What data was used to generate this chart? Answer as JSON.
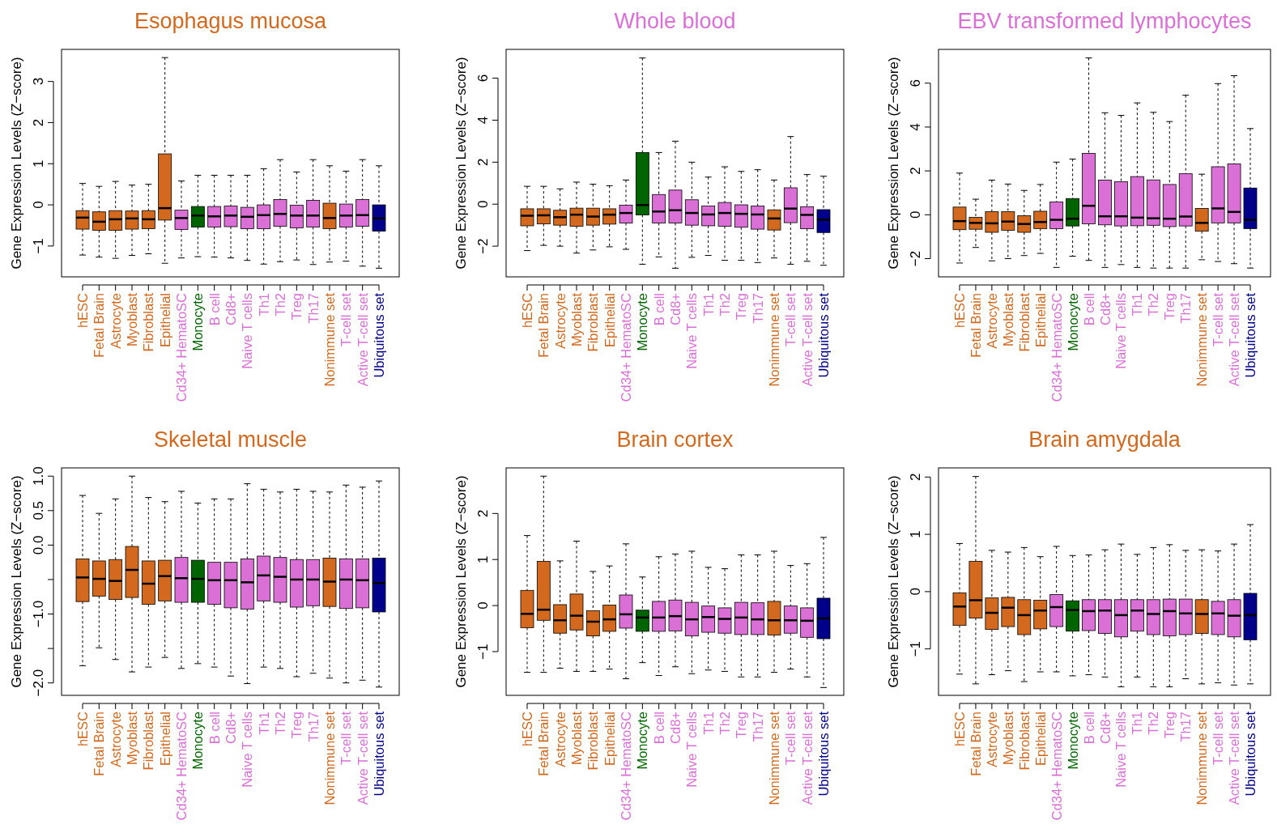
{
  "chart_data": [
    {
      "type": "box",
      "title": "Esophagus mucosa",
      "color": "#d2691e",
      "ylabel": "Gene Expression Levels (Z−score)",
      "ylim": [
        -1.75,
        3.78
      ],
      "yticks": [
        -1,
        0,
        1,
        2,
        3
      ],
      "categories": [
        "hESC",
        "Fetal Brain",
        "Astrocyte",
        "Myoblast",
        "Fibroblast",
        "Epithelial",
        "Cd34+ HematoSC",
        "Monocyte",
        "B cell",
        "Cd8+",
        "Naive T cells",
        "Th1",
        "Th2",
        "Treg",
        "Th17",
        "Nonimmune set",
        "T-cell set",
        "Active T-cell set",
        "Ubiquitous set"
      ],
      "colors": [
        "#d2691e",
        "#d2691e",
        "#d2691e",
        "#d2691e",
        "#d2691e",
        "#d2691e",
        "#da70d6",
        "#006400",
        "#da70d6",
        "#da70d6",
        "#da70d6",
        "#da70d6",
        "#da70d6",
        "#da70d6",
        "#da70d6",
        "#d2691e",
        "#da70d6",
        "#da70d6",
        "#00008b"
      ],
      "boxes": [
        {
          "low": -1.22,
          "q1": -0.59,
          "median": -0.31,
          "q3": -0.14,
          "high": 0.52
        },
        {
          "low": -1.27,
          "q1": -0.62,
          "median": -0.41,
          "q3": -0.17,
          "high": 0.45
        },
        {
          "low": -1.3,
          "q1": -0.62,
          "median": -0.35,
          "q3": -0.14,
          "high": 0.57
        },
        {
          "low": -1.23,
          "q1": -0.59,
          "median": -0.33,
          "q3": -0.15,
          "high": 0.48
        },
        {
          "low": -1.19,
          "q1": -0.58,
          "median": -0.35,
          "q3": -0.14,
          "high": 0.5
        },
        {
          "low": -1.42,
          "q1": -0.37,
          "median": -0.08,
          "q3": 1.24,
          "high": 3.58
        },
        {
          "low": -1.29,
          "q1": -0.6,
          "median": -0.32,
          "q3": -0.13,
          "high": 0.58
        },
        {
          "low": -1.26,
          "q1": -0.54,
          "median": -0.26,
          "q3": -0.04,
          "high": 0.72
        },
        {
          "low": -1.27,
          "q1": -0.54,
          "median": -0.28,
          "q3": -0.04,
          "high": 0.72
        },
        {
          "low": -1.29,
          "q1": -0.53,
          "median": -0.26,
          "q3": -0.03,
          "high": 0.72
        },
        {
          "low": -1.35,
          "q1": -0.58,
          "median": -0.29,
          "q3": -0.06,
          "high": 0.72
        },
        {
          "low": -1.44,
          "q1": -0.58,
          "median": -0.25,
          "q3": 0.0,
          "high": 0.88
        },
        {
          "low": -1.38,
          "q1": -0.52,
          "median": -0.22,
          "q3": 0.13,
          "high": 1.1
        },
        {
          "low": -1.34,
          "q1": -0.56,
          "median": -0.26,
          "q3": -0.01,
          "high": 0.8
        },
        {
          "low": -1.45,
          "q1": -0.54,
          "median": -0.26,
          "q3": 0.11,
          "high": 1.1
        },
        {
          "low": -1.39,
          "q1": -0.58,
          "median": -0.32,
          "q3": 0.04,
          "high": 0.95
        },
        {
          "low": -1.37,
          "q1": -0.54,
          "median": -0.26,
          "q3": 0.02,
          "high": 0.82
        },
        {
          "low": -1.49,
          "q1": -0.52,
          "median": -0.25,
          "q3": 0.13,
          "high": 1.1
        },
        {
          "low": -1.54,
          "q1": -0.64,
          "median": -0.33,
          "q3": 0.0,
          "high": 0.95
        }
      ]
    },
    {
      "type": "box",
      "title": "Whole blood",
      "color": "#da70d6",
      "ylabel": "Gene Expression Levels (Z−score)",
      "ylim": [
        -3.46,
        7.37
      ],
      "yticks": [
        -2,
        0,
        2,
        4,
        6
      ],
      "categories": [
        "hESC",
        "Fetal Brain",
        "Astrocyte",
        "Myoblast",
        "Fibroblast",
        "Epithelial",
        "Cd34+ HematoSC",
        "Monocyte",
        "B cell",
        "Cd8+",
        "Naive T cells",
        "Th1",
        "Th2",
        "Treg",
        "Th17",
        "Nonimmune set",
        "T-cell set",
        "Active T-cell set",
        "Ubiquitous set"
      ],
      "colors": [
        "#d2691e",
        "#d2691e",
        "#d2691e",
        "#d2691e",
        "#d2691e",
        "#d2691e",
        "#da70d6",
        "#006400",
        "#da70d6",
        "#da70d6",
        "#da70d6",
        "#da70d6",
        "#da70d6",
        "#da70d6",
        "#da70d6",
        "#d2691e",
        "#da70d6",
        "#da70d6",
        "#00008b"
      ],
      "boxes": [
        {
          "low": -2.21,
          "q1": -1.03,
          "median": -0.55,
          "q3": -0.22,
          "high": 0.85
        },
        {
          "low": -1.96,
          "q1": -0.94,
          "median": -0.53,
          "q3": -0.22,
          "high": 0.85
        },
        {
          "low": -2.0,
          "q1": -1.0,
          "median": -0.62,
          "q3": -0.29,
          "high": 0.73
        },
        {
          "low": -2.33,
          "q1": -1.05,
          "median": -0.5,
          "q3": -0.19,
          "high": 1.05
        },
        {
          "low": -2.18,
          "q1": -1.0,
          "median": -0.59,
          "q3": -0.19,
          "high": 0.95
        },
        {
          "low": -2.03,
          "q1": -0.95,
          "median": -0.5,
          "q3": -0.22,
          "high": 0.88
        },
        {
          "low": -2.15,
          "q1": -0.9,
          "median": -0.42,
          "q3": -0.05,
          "high": 1.15
        },
        {
          "low": -2.86,
          "q1": -0.51,
          "median": -0.04,
          "q3": 2.46,
          "high": 6.96
        },
        {
          "low": -2.51,
          "q1": -0.9,
          "median": -0.35,
          "q3": 0.46,
          "high": 2.46
        },
        {
          "low": -3.05,
          "q1": -0.9,
          "median": -0.29,
          "q3": 0.67,
          "high": 3.0
        },
        {
          "low": -2.53,
          "q1": -1.0,
          "median": -0.42,
          "q3": 0.21,
          "high": 2.0
        },
        {
          "low": -2.44,
          "q1": -1.03,
          "median": -0.49,
          "q3": -0.09,
          "high": 1.29
        },
        {
          "low": -2.67,
          "q1": -1.05,
          "median": -0.42,
          "q3": 0.08,
          "high": 1.78
        },
        {
          "low": -2.67,
          "q1": -1.1,
          "median": -0.46,
          "q3": -0.03,
          "high": 1.56
        },
        {
          "low": -2.78,
          "q1": -1.19,
          "median": -0.49,
          "q3": -0.09,
          "high": 1.64
        },
        {
          "low": -2.56,
          "q1": -1.23,
          "median": -0.68,
          "q3": -0.27,
          "high": 1.15
        },
        {
          "low": -2.86,
          "q1": -0.88,
          "median": -0.21,
          "q3": 0.78,
          "high": 3.22
        },
        {
          "low": -2.72,
          "q1": -1.17,
          "median": -0.51,
          "q3": -0.12,
          "high": 1.41
        },
        {
          "low": -2.91,
          "q1": -1.35,
          "median": -0.74,
          "q3": -0.26,
          "high": 1.33
        }
      ]
    },
    {
      "type": "box",
      "title": "EBV transformed lymphocytes",
      "color": "#da70d6",
      "ylabel": "Gene Expression Levels (Z−score)",
      "ylim": [
        -2.83,
        7.54
      ],
      "yticks": [
        -2,
        0,
        2,
        4,
        6
      ],
      "categories": [
        "hESC",
        "Fetal Brain",
        "Astrocyte",
        "Myoblast",
        "Fibroblast",
        "Epithelial",
        "Cd34+ HematoSC",
        "Monocyte",
        "B cell",
        "Cd8+",
        "Naive T cells",
        "Th1",
        "Th2",
        "Treg",
        "Th17",
        "Nonimmune set",
        "T-cell set",
        "Active T-cell set",
        "Ubiquitous set"
      ],
      "colors": [
        "#d2691e",
        "#d2691e",
        "#d2691e",
        "#d2691e",
        "#d2691e",
        "#d2691e",
        "#da70d6",
        "#006400",
        "#da70d6",
        "#da70d6",
        "#da70d6",
        "#da70d6",
        "#da70d6",
        "#da70d6",
        "#da70d6",
        "#d2691e",
        "#da70d6",
        "#da70d6",
        "#00008b"
      ],
      "boxes": [
        {
          "low": -2.2,
          "q1": -0.68,
          "median": -0.29,
          "q3": 0.35,
          "high": 1.9
        },
        {
          "low": -1.49,
          "q1": -0.66,
          "median": -0.37,
          "q3": -0.12,
          "high": 0.71
        },
        {
          "low": -2.1,
          "q1": -0.8,
          "median": -0.39,
          "q3": 0.14,
          "high": 1.58
        },
        {
          "low": -2.0,
          "q1": -0.71,
          "median": -0.31,
          "q3": 0.14,
          "high": 1.4
        },
        {
          "low": -1.86,
          "q1": -0.8,
          "median": -0.42,
          "q3": -0.04,
          "high": 1.11
        },
        {
          "low": -1.76,
          "q1": -0.63,
          "median": -0.33,
          "q3": 0.16,
          "high": 1.38
        },
        {
          "low": -2.4,
          "q1": -0.63,
          "median": -0.23,
          "q3": 0.58,
          "high": 2.4
        },
        {
          "low": -1.89,
          "q1": -0.51,
          "median": -0.18,
          "q3": 0.74,
          "high": 2.54
        },
        {
          "low": -2.08,
          "q1": -0.41,
          "median": 0.41,
          "q3": 2.8,
          "high": 7.15
        },
        {
          "low": -2.4,
          "q1": -0.46,
          "median": -0.07,
          "q3": 1.58,
          "high": 4.65
        },
        {
          "low": -2.27,
          "q1": -0.51,
          "median": -0.07,
          "q3": 1.51,
          "high": 4.53
        },
        {
          "low": -2.4,
          "q1": -0.5,
          "median": -0.13,
          "q3": 1.74,
          "high": 5.1
        },
        {
          "low": -2.43,
          "q1": -0.48,
          "median": -0.16,
          "q3": 1.59,
          "high": 4.67
        },
        {
          "low": -2.43,
          "q1": -0.54,
          "median": -0.18,
          "q3": 1.38,
          "high": 4.25
        },
        {
          "low": -2.43,
          "q1": -0.51,
          "median": -0.08,
          "q3": 1.87,
          "high": 5.45
        },
        {
          "low": -2.05,
          "q1": -0.75,
          "median": -0.37,
          "q3": 0.29,
          "high": 1.85
        },
        {
          "low": -2.13,
          "q1": -0.37,
          "median": 0.29,
          "q3": 2.19,
          "high": 5.98
        },
        {
          "low": -2.23,
          "q1": -0.37,
          "median": 0.13,
          "q3": 2.32,
          "high": 6.34
        },
        {
          "low": -2.43,
          "q1": -0.63,
          "median": -0.23,
          "q3": 1.22,
          "high": 3.93
        }
      ]
    },
    {
      "type": "box",
      "title": "Skeletal muscle",
      "color": "#d2691e",
      "ylabel": "Gene Expression Levels (Z−score)",
      "ylim": [
        -2.18,
        1.12
      ],
      "yticks": [
        {
          "value": -2,
          "label": "−2.0"
        },
        {
          "value": -1.5,
          "label": null
        },
        {
          "value": -1,
          "label": "−1.0"
        },
        {
          "value": -0.5,
          "label": null
        },
        {
          "value": 0,
          "label": "0.0"
        },
        {
          "value": 0.5,
          "label": "0.5"
        },
        {
          "value": 1,
          "label": "1.0"
        }
      ],
      "categories": [
        "hESC",
        "Fetal Brain",
        "Astrocyte",
        "Myoblast",
        "Fibroblast",
        "Epithelial",
        "Cd34+ HematoSC",
        "Monocyte",
        "B cell",
        "Cd8+",
        "Naive T cells",
        "Th1",
        "Th2",
        "Treg",
        "Th17",
        "Nonimmune set",
        "T-cell set",
        "Active T-cell set",
        "Ubiquitous set"
      ],
      "colors": [
        "#d2691e",
        "#d2691e",
        "#d2691e",
        "#d2691e",
        "#d2691e",
        "#d2691e",
        "#da70d6",
        "#006400",
        "#da70d6",
        "#da70d6",
        "#da70d6",
        "#da70d6",
        "#da70d6",
        "#da70d6",
        "#da70d6",
        "#d2691e",
        "#da70d6",
        "#da70d6",
        "#00008b"
      ],
      "boxes": [
        {
          "low": -1.75,
          "q1": -0.82,
          "median": -0.47,
          "q3": -0.2,
          "high": 0.72
        },
        {
          "low": -1.49,
          "q1": -0.74,
          "median": -0.49,
          "q3": -0.23,
          "high": 0.46
        },
        {
          "low": -1.66,
          "q1": -0.79,
          "median": -0.52,
          "q3": -0.21,
          "high": 0.67
        },
        {
          "low": -1.84,
          "q1": -0.76,
          "median": -0.36,
          "q3": -0.02,
          "high": 1.0
        },
        {
          "low": -1.77,
          "q1": -0.86,
          "median": -0.56,
          "q3": -0.23,
          "high": 0.69
        },
        {
          "low": -1.63,
          "q1": -0.81,
          "median": -0.45,
          "q3": -0.22,
          "high": 0.63
        },
        {
          "low": -1.79,
          "q1": -0.83,
          "median": -0.48,
          "q3": -0.18,
          "high": 0.78
        },
        {
          "low": -1.72,
          "q1": -0.83,
          "median": -0.49,
          "q3": -0.22,
          "high": 0.61
        },
        {
          "low": -1.77,
          "q1": -0.86,
          "median": -0.51,
          "q3": -0.25,
          "high": 0.67
        },
        {
          "low": -1.9,
          "q1": -0.91,
          "median": -0.51,
          "q3": -0.25,
          "high": 0.67
        },
        {
          "low": -2.01,
          "q1": -0.93,
          "median": -0.54,
          "q3": -0.2,
          "high": 0.89
        },
        {
          "low": -1.77,
          "q1": -0.81,
          "median": -0.44,
          "q3": -0.16,
          "high": 0.81
        },
        {
          "low": -1.79,
          "q1": -0.83,
          "median": -0.46,
          "q3": -0.18,
          "high": 0.77
        },
        {
          "low": -1.91,
          "q1": -0.9,
          "median": -0.5,
          "q3": -0.21,
          "high": 0.81
        },
        {
          "low": -1.86,
          "q1": -0.88,
          "median": -0.5,
          "q3": -0.21,
          "high": 0.78
        },
        {
          "low": -1.93,
          "q1": -0.89,
          "median": -0.53,
          "q3": -0.19,
          "high": 0.77
        },
        {
          "low": -2.0,
          "q1": -0.92,
          "median": -0.5,
          "q3": -0.2,
          "high": 0.87
        },
        {
          "low": -1.96,
          "q1": -0.91,
          "median": -0.51,
          "q3": -0.2,
          "high": 0.84
        },
        {
          "low": -2.06,
          "q1": -0.97,
          "median": -0.55,
          "q3": -0.19,
          "high": 0.93
        }
      ]
    },
    {
      "type": "box",
      "title": "Brain cortex",
      "color": "#d2691e",
      "ylabel": "Gene Expression Levels (Z−score)",
      "ylim": [
        -1.95,
        2.99
      ],
      "yticks": [
        -1,
        0,
        1,
        2
      ],
      "categories": [
        "hESC",
        "Fetal Brain",
        "Astrocyte",
        "Myoblast",
        "Fibroblast",
        "Epithelial",
        "Cd34+ HematoSC",
        "Monocyte",
        "B cell",
        "Cd8+",
        "Naive T cells",
        "Th1",
        "Th2",
        "Treg",
        "Th17",
        "Nonimmune set",
        "T-cell set",
        "Active T-cell set",
        "Ubiquitous set"
      ],
      "colors": [
        "#d2691e",
        "#d2691e",
        "#d2691e",
        "#d2691e",
        "#d2691e",
        "#d2691e",
        "#da70d6",
        "#006400",
        "#da70d6",
        "#da70d6",
        "#da70d6",
        "#da70d6",
        "#da70d6",
        "#da70d6",
        "#da70d6",
        "#d2691e",
        "#da70d6",
        "#da70d6",
        "#00008b"
      ],
      "boxes": [
        {
          "low": -1.45,
          "q1": -0.48,
          "median": -0.18,
          "q3": 0.33,
          "high": 1.52
        },
        {
          "low": -1.45,
          "q1": -0.32,
          "median": -0.09,
          "q3": 0.96,
          "high": 2.81
        },
        {
          "low": -1.36,
          "q1": -0.6,
          "median": -0.32,
          "q3": 0.02,
          "high": 0.97
        },
        {
          "low": -1.43,
          "q1": -0.53,
          "median": -0.22,
          "q3": 0.25,
          "high": 1.4
        },
        {
          "low": -1.43,
          "q1": -0.66,
          "median": -0.35,
          "q3": -0.11,
          "high": 0.74
        },
        {
          "low": -1.38,
          "q1": -0.56,
          "median": -0.3,
          "q3": 0.01,
          "high": 0.86
        },
        {
          "low": -1.59,
          "q1": -0.49,
          "median": -0.19,
          "q3": 0.23,
          "high": 1.34
        },
        {
          "low": -1.24,
          "q1": -0.56,
          "median": -0.26,
          "q3": -0.1,
          "high": 0.62
        },
        {
          "low": -1.52,
          "q1": -0.56,
          "median": -0.26,
          "q3": 0.09,
          "high": 1.06
        },
        {
          "low": -1.33,
          "q1": -0.55,
          "median": -0.23,
          "q3": 0.12,
          "high": 1.12
        },
        {
          "low": -1.48,
          "q1": -0.66,
          "median": -0.3,
          "q3": 0.07,
          "high": 1.18
        },
        {
          "low": -1.4,
          "q1": -0.58,
          "median": -0.25,
          "q3": -0.01,
          "high": 0.83
        },
        {
          "low": -1.43,
          "q1": -0.6,
          "median": -0.29,
          "q3": -0.05,
          "high": 0.8
        },
        {
          "low": -1.55,
          "q1": -0.63,
          "median": -0.26,
          "q3": 0.07,
          "high": 1.1
        },
        {
          "low": -1.55,
          "q1": -0.63,
          "median": -0.3,
          "q3": 0.06,
          "high": 1.1
        },
        {
          "low": -1.45,
          "q1": -0.64,
          "median": -0.32,
          "q3": 0.09,
          "high": 1.18
        },
        {
          "low": -1.38,
          "q1": -0.6,
          "median": -0.32,
          "q3": -0.01,
          "high": 0.87
        },
        {
          "low": -1.55,
          "q1": -0.69,
          "median": -0.33,
          "q3": -0.05,
          "high": 0.91
        },
        {
          "low": -1.78,
          "q1": -0.72,
          "median": -0.28,
          "q3": 0.16,
          "high": 1.48
        }
      ]
    },
    {
      "type": "box",
      "title": "Brain amygdala",
      "color": "#d2691e",
      "ylabel": "Gene Expression Levels (Z−score)",
      "ylim": [
        -1.81,
        2.16
      ],
      "yticks": [
        -1,
        0,
        1,
        2
      ],
      "categories": [
        "hESC",
        "Fetal Brain",
        "Astrocyte",
        "Myoblast",
        "Fibroblast",
        "Epithelial",
        "Cd34+ HematoSC",
        "Monocyte",
        "B cell",
        "Cd8+",
        "Naive T cells",
        "Th1",
        "Th2",
        "Treg",
        "Th17",
        "Nonimmune set",
        "T-cell set",
        "Active T-cell set",
        "Ubiquitous set"
      ],
      "colors": [
        "#d2691e",
        "#d2691e",
        "#d2691e",
        "#d2691e",
        "#d2691e",
        "#d2691e",
        "#da70d6",
        "#006400",
        "#da70d6",
        "#da70d6",
        "#da70d6",
        "#da70d6",
        "#da70d6",
        "#da70d6",
        "#da70d6",
        "#d2691e",
        "#da70d6",
        "#da70d6",
        "#00008b"
      ],
      "boxes": [
        {
          "low": -1.44,
          "q1": -0.59,
          "median": -0.26,
          "q3": -0.02,
          "high": 0.84
        },
        {
          "low": -1.61,
          "q1": -0.46,
          "median": -0.15,
          "q3": 0.53,
          "high": 2.01
        },
        {
          "low": -1.45,
          "q1": -0.66,
          "median": -0.37,
          "q3": -0.11,
          "high": 0.72
        },
        {
          "low": -1.38,
          "q1": -0.61,
          "median": -0.28,
          "q3": -0.1,
          "high": 0.69
        },
        {
          "low": -1.57,
          "q1": -0.75,
          "median": -0.41,
          "q3": -0.14,
          "high": 0.77
        },
        {
          "low": -1.4,
          "q1": -0.65,
          "median": -0.33,
          "q3": -0.15,
          "high": 0.61
        },
        {
          "low": -1.4,
          "q1": -0.61,
          "median": -0.27,
          "q3": -0.05,
          "high": 0.79
        },
        {
          "low": -1.47,
          "q1": -0.69,
          "median": -0.32,
          "q3": -0.16,
          "high": 0.63
        },
        {
          "low": -1.45,
          "q1": -0.68,
          "median": -0.34,
          "q3": -0.14,
          "high": 0.64
        },
        {
          "low": -1.49,
          "q1": -0.73,
          "median": -0.33,
          "q3": -0.14,
          "high": 0.73
        },
        {
          "low": -1.66,
          "q1": -0.79,
          "median": -0.41,
          "q3": -0.14,
          "high": 0.83
        },
        {
          "low": -1.49,
          "q1": -0.69,
          "median": -0.33,
          "q3": -0.14,
          "high": 0.65
        },
        {
          "low": -1.66,
          "q1": -0.75,
          "median": -0.39,
          "q3": -0.14,
          "high": 0.77
        },
        {
          "low": -1.66,
          "q1": -0.77,
          "median": -0.34,
          "q3": -0.13,
          "high": 0.82
        },
        {
          "low": -1.52,
          "q1": -0.75,
          "median": -0.38,
          "q3": -0.13,
          "high": 0.72
        },
        {
          "low": -1.61,
          "q1": -0.73,
          "median": -0.39,
          "q3": -0.14,
          "high": 0.73
        },
        {
          "low": -1.59,
          "q1": -0.75,
          "median": -0.38,
          "q3": -0.17,
          "high": 0.71
        },
        {
          "low": -1.63,
          "q1": -0.79,
          "median": -0.42,
          "q3": -0.14,
          "high": 0.83
        },
        {
          "low": -1.61,
          "q1": -0.84,
          "median": -0.41,
          "q3": -0.03,
          "high": 1.17
        }
      ]
    }
  ]
}
